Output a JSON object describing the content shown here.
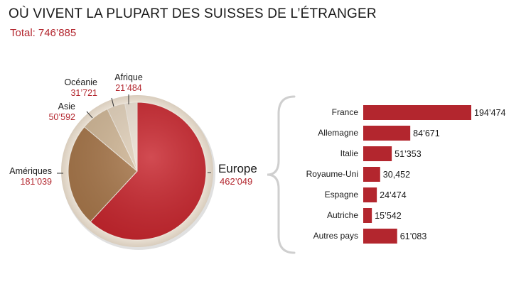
{
  "header": {
    "title": "OÙ VIVENT LA PLUPART DES SUISSES DE L’ÉTRANGER",
    "total_label": "Total:",
    "total_value": "746’885"
  },
  "chart_data": [
    {
      "type": "pie",
      "title": "OÙ VIVENT LA PLUPART DES SUISSES DE L’ÉTRANGER",
      "total": 746885,
      "slices": [
        {
          "key": "europe",
          "label": "Europe",
          "value": 462049,
          "value_text": "462’049",
          "color": "#c8242c"
        },
        {
          "key": "ameriques",
          "label": "Amériques",
          "value": 181039,
          "value_text": "181’039",
          "color": "#a8774a"
        },
        {
          "key": "asie",
          "label": "Asie",
          "value": 50592,
          "value_text": "50’592",
          "color": "#d2b897"
        },
        {
          "key": "oceanie",
          "label": "Océanie",
          "value": 31721,
          "value_text": "31’721",
          "color": "#e3d2bb"
        },
        {
          "key": "afrique",
          "label": "Afrique",
          "value": 21484,
          "value_text": "21’484",
          "color": "#eee3d5"
        }
      ]
    },
    {
      "type": "bar",
      "orientation": "horizontal",
      "title": "Europe",
      "bar_color": "#b3262e",
      "categories": [
        "France",
        "Allemagne",
        "Italie",
        "Royaume-Uni",
        "Espagne",
        "Autriche",
        "Autres pays"
      ],
      "values": [
        194474,
        84671,
        51353,
        30452,
        24474,
        15542,
        61083
      ],
      "value_labels": [
        "194’474",
        "84’671",
        "51’353",
        "30,452",
        "24’474",
        "15’542",
        "61’083"
      ]
    }
  ]
}
